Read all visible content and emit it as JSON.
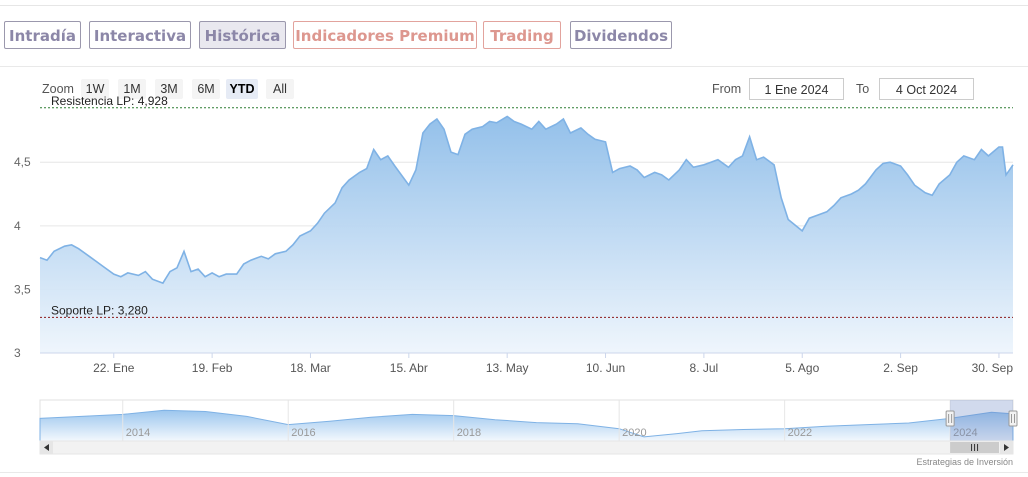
{
  "tabs": [
    {
      "label": "Intradía",
      "style": "normal"
    },
    {
      "label": "Interactiva",
      "style": "normal"
    },
    {
      "label": "Histórica",
      "style": "active"
    },
    {
      "label": "Indicadores Premium",
      "style": "premium"
    },
    {
      "label": "Trading",
      "style": "premium"
    },
    {
      "label": "Dividendos",
      "style": "normal"
    }
  ],
  "zoom": {
    "label": "Zoom",
    "buttons": [
      "1W",
      "1M",
      "3M",
      "6M",
      "YTD",
      "All"
    ],
    "active": "YTD"
  },
  "range": {
    "from_label": "From",
    "from_value": "1 Ene 2024",
    "to_label": "To",
    "to_value": "4 Oct 2024"
  },
  "credit": "Estrategias de Inversión",
  "colors": {
    "line": "#7fb2e5",
    "fill_top": "#8ebde9",
    "resistance": "#2e7d32",
    "support": "#8b1a1a",
    "tab_text": "#8c87a8",
    "tab_premium": "#dd978f"
  },
  "chart_data": {
    "type": "area",
    "title": "",
    "xlabel": "",
    "ylabel": "",
    "ylim": [
      3.0,
      4.95
    ],
    "yticks": [
      "3",
      "3,5",
      "4",
      "4,5"
    ],
    "ytick_values": [
      3.0,
      3.5,
      4.0,
      4.5
    ],
    "x_range": [
      "2024-01-01",
      "2024-10-04"
    ],
    "xticks": [
      {
        "label": "22. Ene",
        "date": "2024-01-22"
      },
      {
        "label": "19. Feb",
        "date": "2024-02-19"
      },
      {
        "label": "18. Mar",
        "date": "2024-03-18"
      },
      {
        "label": "15. Abr",
        "date": "2024-04-15"
      },
      {
        "label": "13. May",
        "date": "2024-05-13"
      },
      {
        "label": "10. Jun",
        "date": "2024-06-10"
      },
      {
        "label": "8. Jul",
        "date": "2024-07-08"
      },
      {
        "label": "5. Ago",
        "date": "2024-08-05"
      },
      {
        "label": "2. Sep",
        "date": "2024-09-02"
      },
      {
        "label": "30. Sep",
        "date": "2024-09-30"
      }
    ],
    "grid": true,
    "legend": "none",
    "annotations": [
      {
        "label": "Resistencia LP: 4,928",
        "value": 4.928,
        "kind": "resistance"
      },
      {
        "label": "Soporte LP: 3,280",
        "value": 3.28,
        "kind": "support"
      }
    ],
    "series": [
      {
        "points": [
          [
            "2024-01-01",
            3.75
          ],
          [
            "2024-01-03",
            3.73
          ],
          [
            "2024-01-05",
            3.8
          ],
          [
            "2024-01-08",
            3.84
          ],
          [
            "2024-01-10",
            3.85
          ],
          [
            "2024-01-12",
            3.82
          ],
          [
            "2024-01-15",
            3.76
          ],
          [
            "2024-01-17",
            3.72
          ],
          [
            "2024-01-19",
            3.68
          ],
          [
            "2024-01-22",
            3.62
          ],
          [
            "2024-01-24",
            3.6
          ],
          [
            "2024-01-26",
            3.63
          ],
          [
            "2024-01-29",
            3.61
          ],
          [
            "2024-01-31",
            3.64
          ],
          [
            "2024-02-02",
            3.58
          ],
          [
            "2024-02-05",
            3.55
          ],
          [
            "2024-02-07",
            3.64
          ],
          [
            "2024-02-09",
            3.67
          ],
          [
            "2024-02-11",
            3.8
          ],
          [
            "2024-02-13",
            3.64
          ],
          [
            "2024-02-15",
            3.66
          ],
          [
            "2024-02-17",
            3.6
          ],
          [
            "2024-02-19",
            3.63
          ],
          [
            "2024-02-21",
            3.6
          ],
          [
            "2024-02-23",
            3.62
          ],
          [
            "2024-02-26",
            3.62
          ],
          [
            "2024-02-28",
            3.7
          ],
          [
            "2024-03-01",
            3.73
          ],
          [
            "2024-03-04",
            3.76
          ],
          [
            "2024-03-06",
            3.74
          ],
          [
            "2024-03-08",
            3.78
          ],
          [
            "2024-03-11",
            3.8
          ],
          [
            "2024-03-13",
            3.85
          ],
          [
            "2024-03-15",
            3.92
          ],
          [
            "2024-03-18",
            3.96
          ],
          [
            "2024-03-20",
            4.02
          ],
          [
            "2024-03-22",
            4.1
          ],
          [
            "2024-03-25",
            4.18
          ],
          [
            "2024-03-27",
            4.3
          ],
          [
            "2024-03-29",
            4.36
          ],
          [
            "2024-04-01",
            4.42
          ],
          [
            "2024-04-03",
            4.45
          ],
          [
            "2024-04-05",
            4.6
          ],
          [
            "2024-04-07",
            4.52
          ],
          [
            "2024-04-09",
            4.55
          ],
          [
            "2024-04-11",
            4.47
          ],
          [
            "2024-04-15",
            4.32
          ],
          [
            "2024-04-17",
            4.44
          ],
          [
            "2024-04-19",
            4.73
          ],
          [
            "2024-04-21",
            4.8
          ],
          [
            "2024-04-23",
            4.84
          ],
          [
            "2024-04-25",
            4.76
          ],
          [
            "2024-04-27",
            4.58
          ],
          [
            "2024-04-29",
            4.56
          ],
          [
            "2024-05-01",
            4.72
          ],
          [
            "2024-05-03",
            4.76
          ],
          [
            "2024-05-06",
            4.78
          ],
          [
            "2024-05-08",
            4.82
          ],
          [
            "2024-05-10",
            4.81
          ],
          [
            "2024-05-13",
            4.86
          ],
          [
            "2024-05-15",
            4.82
          ],
          [
            "2024-05-17",
            4.8
          ],
          [
            "2024-05-20",
            4.76
          ],
          [
            "2024-05-22",
            4.82
          ],
          [
            "2024-05-24",
            4.76
          ],
          [
            "2024-05-27",
            4.8
          ],
          [
            "2024-05-29",
            4.84
          ],
          [
            "2024-05-31",
            4.73
          ],
          [
            "2024-06-03",
            4.77
          ],
          [
            "2024-06-05",
            4.72
          ],
          [
            "2024-06-07",
            4.68
          ],
          [
            "2024-06-10",
            4.66
          ],
          [
            "2024-06-12",
            4.42
          ],
          [
            "2024-06-14",
            4.45
          ],
          [
            "2024-06-17",
            4.47
          ],
          [
            "2024-06-19",
            4.44
          ],
          [
            "2024-06-21",
            4.38
          ],
          [
            "2024-06-24",
            4.42
          ],
          [
            "2024-06-26",
            4.4
          ],
          [
            "2024-06-28",
            4.36
          ],
          [
            "2024-07-01",
            4.44
          ],
          [
            "2024-07-03",
            4.52
          ],
          [
            "2024-07-05",
            4.46
          ],
          [
            "2024-07-08",
            4.48
          ],
          [
            "2024-07-10",
            4.5
          ],
          [
            "2024-07-12",
            4.52
          ],
          [
            "2024-07-15",
            4.46
          ],
          [
            "2024-07-17",
            4.52
          ],
          [
            "2024-07-19",
            4.55
          ],
          [
            "2024-07-21",
            4.7
          ],
          [
            "2024-07-23",
            4.52
          ],
          [
            "2024-07-25",
            4.54
          ],
          [
            "2024-07-28",
            4.48
          ],
          [
            "2024-07-30",
            4.22
          ],
          [
            "2024-08-01",
            4.05
          ],
          [
            "2024-08-05",
            3.96
          ],
          [
            "2024-08-07",
            4.06
          ],
          [
            "2024-08-09",
            4.08
          ],
          [
            "2024-08-12",
            4.11
          ],
          [
            "2024-08-14",
            4.16
          ],
          [
            "2024-08-16",
            4.22
          ],
          [
            "2024-08-19",
            4.25
          ],
          [
            "2024-08-21",
            4.28
          ],
          [
            "2024-08-23",
            4.33
          ],
          [
            "2024-08-26",
            4.44
          ],
          [
            "2024-08-28",
            4.49
          ],
          [
            "2024-08-30",
            4.5
          ],
          [
            "2024-09-02",
            4.47
          ],
          [
            "2024-09-04",
            4.4
          ],
          [
            "2024-09-06",
            4.32
          ],
          [
            "2024-09-09",
            4.26
          ],
          [
            "2024-09-11",
            4.24
          ],
          [
            "2024-09-13",
            4.33
          ],
          [
            "2024-09-16",
            4.4
          ],
          [
            "2024-09-18",
            4.5
          ],
          [
            "2024-09-20",
            4.55
          ],
          [
            "2024-09-23",
            4.52
          ],
          [
            "2024-09-25",
            4.6
          ],
          [
            "2024-09-27",
            4.55
          ],
          [
            "2024-09-30",
            4.62
          ],
          [
            "2024-10-01",
            4.62
          ],
          [
            "2024-10-02",
            4.4
          ],
          [
            "2024-10-03",
            4.44
          ],
          [
            "2024-10-04",
            4.48
          ]
        ]
      }
    ]
  },
  "navigator": {
    "years": [
      "2014",
      "2016",
      "2018",
      "2020",
      "2022",
      "2024"
    ],
    "selected_range": [
      "2024-01-01",
      "2024-10-04"
    ],
    "profile": [
      [
        "2013",
        0.55
      ],
      [
        "2013.5",
        0.6
      ],
      [
        "2014",
        0.65
      ],
      [
        "2014.5",
        0.75
      ],
      [
        "2015",
        0.72
      ],
      [
        "2015.5",
        0.6
      ],
      [
        "2016",
        0.4
      ],
      [
        "2016.5",
        0.48
      ],
      [
        "2017",
        0.58
      ],
      [
        "2017.5",
        0.65
      ],
      [
        "2018",
        0.62
      ],
      [
        "2018.5",
        0.52
      ],
      [
        "2019",
        0.45
      ],
      [
        "2019.5",
        0.42
      ],
      [
        "2020",
        0.3
      ],
      [
        "2020.3",
        0.1
      ],
      [
        "2020.7",
        0.18
      ],
      [
        "2021",
        0.25
      ],
      [
        "2021.5",
        0.28
      ],
      [
        "2022",
        0.3
      ],
      [
        "2022.5",
        0.36
      ],
      [
        "2023",
        0.4
      ],
      [
        "2023.5",
        0.44
      ],
      [
        "2024",
        0.55
      ],
      [
        "2024.5",
        0.7
      ],
      [
        "2024.76",
        0.66
      ]
    ]
  }
}
